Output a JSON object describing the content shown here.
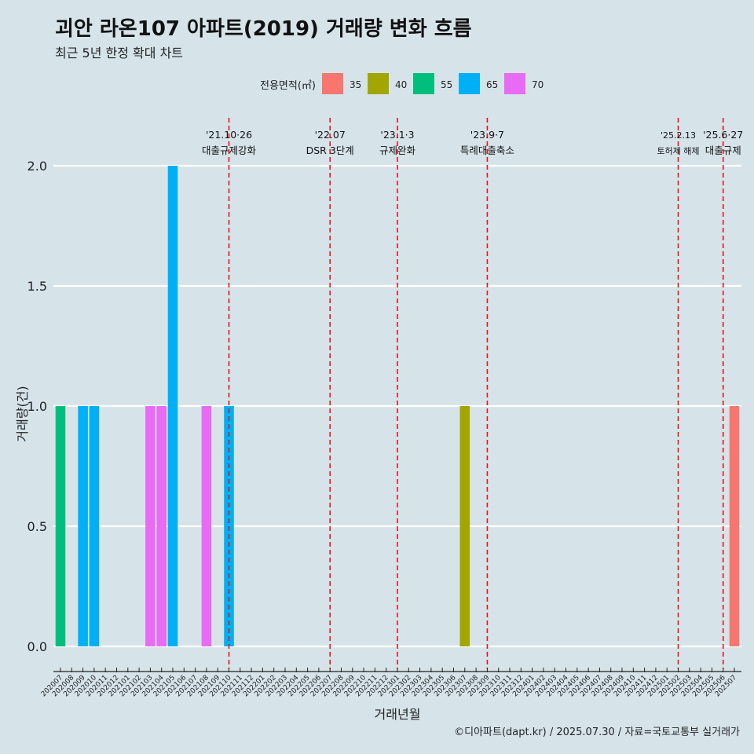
{
  "header": {
    "title": "괴안 라온107 아파트(2019) 거래량 변화 흐름",
    "subtitle": "최근 5년 한정 확대 차트"
  },
  "legend": {
    "title": "전용면적(㎡)",
    "items": [
      {
        "label": "35",
        "color": "#f8766d"
      },
      {
        "label": "40",
        "color": "#a3a500"
      },
      {
        "label": "55",
        "color": "#00bf7d"
      },
      {
        "label": "65",
        "color": "#00b0f6"
      },
      {
        "label": "70",
        "color": "#e76bf3"
      }
    ]
  },
  "caption": "©디아파트(dapt.kr) / 2025.07.30 / 자료=국토교통부 실거래가",
  "chart_data": {
    "type": "bar",
    "xlabel": "거래년월",
    "ylabel": "거래량(건)",
    "ylim": [
      0,
      2
    ],
    "yticks": [
      "0.0",
      "0.5",
      "1.0",
      "1.5",
      "2.0"
    ],
    "grid": true,
    "legend_position": "top",
    "categories": [
      "202007",
      "202008",
      "202009",
      "202010",
      "202011",
      "202012",
      "202101",
      "202102",
      "202103",
      "202104",
      "202105",
      "202106",
      "202107",
      "202108",
      "202109",
      "202110",
      "202111",
      "202112",
      "202201",
      "202202",
      "202203",
      "202204",
      "202205",
      "202206",
      "202207",
      "202208",
      "202209",
      "202210",
      "202211",
      "202212",
      "202301",
      "202302",
      "202303",
      "202304",
      "202305",
      "202306",
      "202307",
      "202308",
      "202309",
      "202310",
      "202311",
      "202312",
      "202401",
      "202402",
      "202403",
      "202404",
      "202405",
      "202406",
      "202407",
      "202408",
      "202409",
      "202410",
      "202411",
      "202412",
      "202501",
      "202502",
      "202503",
      "202504",
      "202505",
      "202506",
      "202507"
    ],
    "bars": [
      {
        "month": "202007",
        "area": "55",
        "value": 1
      },
      {
        "month": "202009",
        "area": "65",
        "value": 1
      },
      {
        "month": "202010",
        "area": "65",
        "value": 1
      },
      {
        "month": "202103",
        "area": "70",
        "value": 1
      },
      {
        "month": "202104",
        "area": "70",
        "value": 1
      },
      {
        "month": "202105",
        "area": "65",
        "value": 2
      },
      {
        "month": "202108",
        "area": "70",
        "value": 1
      },
      {
        "month": "202110",
        "area": "65",
        "value": 1
      },
      {
        "month": "202307",
        "area": "40",
        "value": 1
      },
      {
        "month": "202507",
        "area": "35",
        "value": 1
      }
    ],
    "events": [
      {
        "position": "202110",
        "date": "'21.10·26",
        "label": "대출규제강화",
        "font": "normal"
      },
      {
        "position": "202207",
        "date": "'22.07",
        "label": "DSR 3단계",
        "font": "normal"
      },
      {
        "position": "202301",
        "date": "'23.1·3",
        "label": "규제완화",
        "font": "normal"
      },
      {
        "position": "202309",
        "date": "'23.9·7",
        "label": "특례대출축소",
        "font": "normal"
      },
      {
        "position": "202502",
        "date": "'25.2.13",
        "label": "토허제 해제",
        "font": "small"
      },
      {
        "position": "202506",
        "date": "'25.6·27",
        "label": "대출규제",
        "font": "normal"
      }
    ]
  }
}
